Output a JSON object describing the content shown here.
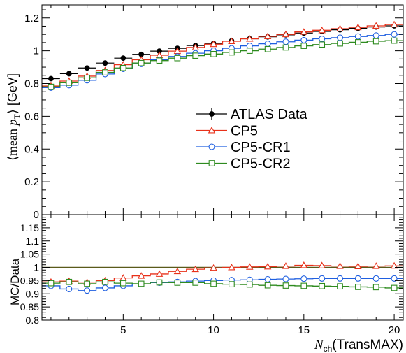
{
  "chart_data": [
    {
      "type": "line",
      "panel": "main",
      "ylabel": "⟨mean p_T⟩ [GeV]",
      "ylabel_parts": {
        "open": "⟨mean ",
        "sym": "p",
        "sub": "T",
        "close": "⟩ [GeV]"
      },
      "xlim": [
        0.5,
        20.5
      ],
      "ylim": [
        0,
        1.28
      ],
      "yticks": [
        0,
        0.2,
        0.4,
        0.6,
        0.8,
        1,
        1.2
      ],
      "ytick_labels": [
        "0",
        "0.2",
        "0.4",
        "0.6",
        "0.8",
        "1",
        "1.2"
      ],
      "legend_position": "center-right",
      "x": [
        1,
        2,
        3,
        4,
        5,
        6,
        7,
        8,
        9,
        10,
        11,
        12,
        13,
        14,
        15,
        16,
        17,
        18,
        19,
        20
      ],
      "series": [
        {
          "name": "ATLAS Data",
          "color": "#000000",
          "marker": "filled-circle",
          "values": [
            0.83,
            0.86,
            0.895,
            0.925,
            0.955,
            0.978,
            0.998,
            1.015,
            1.032,
            1.045,
            1.06,
            1.073,
            1.085,
            1.097,
            1.108,
            1.118,
            1.128,
            1.137,
            1.145,
            1.152
          ]
        },
        {
          "name": "CP5",
          "color": "#e8311a",
          "marker": "open-triangle",
          "values": [
            0.785,
            0.815,
            0.845,
            0.88,
            0.915,
            0.945,
            0.973,
            0.998,
            1.02,
            1.04,
            1.058,
            1.073,
            1.088,
            1.1,
            1.115,
            1.125,
            1.135,
            1.143,
            1.152,
            1.16
          ]
        },
        {
          "name": "CP5-CR1",
          "color": "#1f5fe0",
          "marker": "open-circle",
          "values": [
            0.775,
            0.79,
            0.82,
            0.858,
            0.89,
            0.92,
            0.945,
            0.965,
            0.985,
            1.0,
            1.015,
            1.03,
            1.043,
            1.055,
            1.065,
            1.073,
            1.08,
            1.087,
            1.093,
            1.1
          ]
        },
        {
          "name": "CP5-CR2",
          "color": "#2e8b1f",
          "marker": "open-square",
          "values": [
            0.78,
            0.805,
            0.835,
            0.868,
            0.895,
            0.925,
            0.94,
            0.955,
            0.97,
            0.98,
            0.99,
            1.0,
            1.01,
            1.02,
            1.03,
            1.038,
            1.045,
            1.052,
            1.058,
            1.062
          ]
        }
      ]
    },
    {
      "type": "line",
      "panel": "ratio",
      "ylabel": "MC/Data",
      "xlabel": "N_ch(TransMAX)",
      "xlabel_parts": {
        "sym": "N",
        "sub": "ch",
        "rest": "(TransMAX)"
      },
      "xlim": [
        0.5,
        20.5
      ],
      "ylim": [
        0.8,
        1.2
      ],
      "xticks": [
        5,
        10,
        15,
        20
      ],
      "xtick_labels": [
        "5",
        "10",
        "15",
        "20"
      ],
      "yticks": [
        0.8,
        0.85,
        0.9,
        0.95,
        1,
        1.05,
        1.1,
        1.15
      ],
      "ytick_labels": [
        "0.8",
        "0.85",
        "0.9",
        "0.95",
        "1",
        "1.05",
        "1.1",
        "1.15"
      ],
      "reference_line": 1.0,
      "x": [
        1,
        2,
        3,
        4,
        5,
        6,
        7,
        8,
        9,
        10,
        11,
        12,
        13,
        14,
        15,
        16,
        17,
        18,
        19,
        20
      ],
      "series": [
        {
          "name": "CP5",
          "color": "#e8311a",
          "marker": "open-triangle",
          "values": [
            0.945,
            0.948,
            0.944,
            0.95,
            0.96,
            0.968,
            0.975,
            0.985,
            0.993,
            0.998,
            1.0,
            1.002,
            1.003,
            1.005,
            1.008,
            1.007,
            1.005,
            1.004,
            1.005,
            1.006
          ]
        },
        {
          "name": "CP5-CR1",
          "color": "#1f5fe0",
          "marker": "open-circle",
          "values": [
            0.93,
            0.918,
            0.912,
            0.922,
            0.93,
            0.937,
            0.942,
            0.945,
            0.948,
            0.95,
            0.952,
            0.953,
            0.955,
            0.956,
            0.957,
            0.958,
            0.958,
            0.958,
            0.958,
            0.958
          ]
        },
        {
          "name": "CP5-CR2",
          "color": "#2e8b1f",
          "marker": "open-square",
          "values": [
            0.94,
            0.945,
            0.938,
            0.945,
            0.94,
            0.938,
            0.943,
            0.942,
            0.942,
            0.938,
            0.936,
            0.935,
            0.932,
            0.931,
            0.93,
            0.929,
            0.928,
            0.926,
            0.925,
            0.922
          ]
        }
      ]
    }
  ]
}
